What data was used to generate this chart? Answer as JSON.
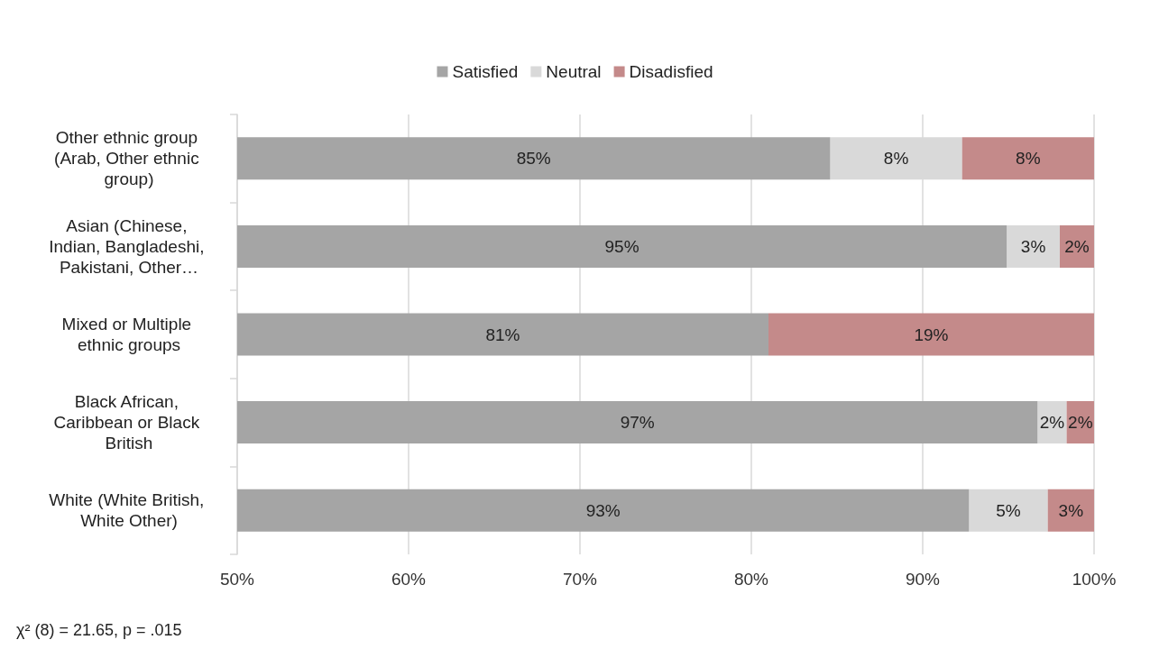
{
  "chart_data": {
    "type": "bar",
    "orientation": "horizontal",
    "stacked": true,
    "categories": [
      "Other ethnic group (Arab, Other ethnic group)",
      "Asian (Chinese, Indian, Bangladeshi, Pakistani, Other…",
      "Mixed or Multiple ethnic groups",
      "Black African, Caribbean or Black British",
      "White (White British, White Other)"
    ],
    "series": [
      {
        "name": "Satisfied",
        "color": "#a5a5a5",
        "values": [
          84.6,
          94.9,
          81.0,
          96.7,
          92.7
        ],
        "value_labels": [
          "85%",
          "95%",
          "81%",
          "97%",
          "93%"
        ]
      },
      {
        "name": "Neutral",
        "color": "#d9d9d9",
        "base": [
          84.6,
          94.9,
          null,
          96.7,
          92.7
        ],
        "values": [
          7.7,
          3.1,
          null,
          1.7,
          4.6
        ],
        "value_labels": [
          "8%",
          "3%",
          null,
          "2%",
          "5%"
        ]
      },
      {
        "name": "Disadisfied",
        "color": "#c48a8a",
        "base": [
          92.3,
          98.0,
          81.0,
          98.4,
          97.3
        ],
        "values": [
          7.7,
          2.0,
          19.0,
          1.6,
          2.7
        ],
        "value_labels": [
          "8%",
          "2%",
          "19%",
          "2%",
          "3%"
        ]
      }
    ],
    "xlim": [
      50,
      100
    ],
    "xticks": [
      {
        "value": 50,
        "label": "50%"
      },
      {
        "value": 60,
        "label": "60%"
      },
      {
        "value": 70,
        "label": "70%"
      },
      {
        "value": 80,
        "label": "80%"
      },
      {
        "value": 90,
        "label": "90%"
      },
      {
        "value": 100,
        "label": "100%"
      }
    ],
    "grid": "x",
    "legend": "top",
    "annotations": [
      "χ² (8) = 21.65, p = .015"
    ]
  }
}
